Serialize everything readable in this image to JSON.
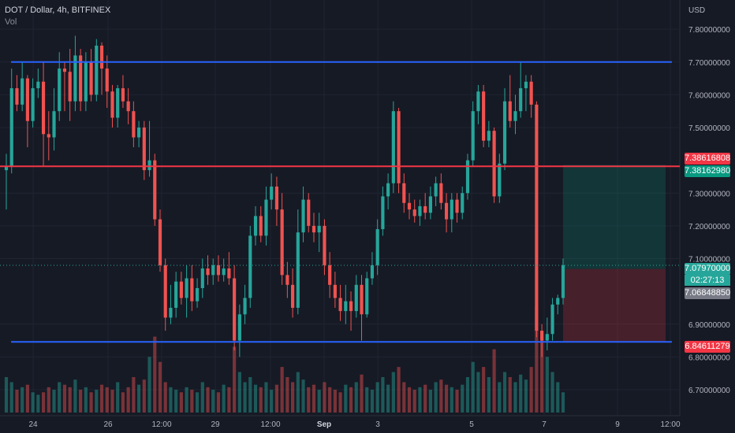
{
  "header": {
    "symbol": "DOT / Dollar, 4h, BITFINEX",
    "indicator": "Vol"
  },
  "colors": {
    "background": "#161a25",
    "up": "#26a69a",
    "down": "#ef5350",
    "support_resistance": "#2962ff",
    "level_line": "#f23645",
    "grid": "#202431",
    "axis_text": "#b2b5be"
  },
  "chart_data": {
    "type": "candlestick",
    "title": "DOT / Dollar, 4h, BITFINEX",
    "currency_label": "USD",
    "x_ticks": [
      "24",
      "26",
      "12:00",
      "29",
      "12:00",
      "Sep",
      "3",
      "5",
      "7",
      "9",
      "12:00"
    ],
    "y_ticks": [
      "7.80000000",
      "7.70000000",
      "7.60000000",
      "7.50000000",
      "7.30000000",
      "7.20000000",
      "7.10000000",
      "6.90000000",
      "6.80000000",
      "6.70000000"
    ],
    "ylim": [
      6.64,
      7.87
    ],
    "horizontal_lines": [
      {
        "price": 7.7,
        "color": "#2962ff"
      },
      {
        "price": 7.3816298,
        "color": "#f23645"
      },
      {
        "price": 6.84611279,
        "color": "#2962ff"
      }
    ],
    "position": {
      "entry": 7.0684885,
      "take_profit": 7.38616808,
      "stop_loss": 6.84611279
    },
    "price_labels": [
      {
        "text": "7.38616808",
        "kind": "sell"
      },
      {
        "text": "7.38162980",
        "kind": "buy"
      },
      {
        "text": "7.07970000",
        "kind": "buy"
      },
      {
        "text": "02:27:13",
        "kind": "countdown"
      },
      {
        "text": "7.06848850",
        "kind": "gray"
      },
      {
        "text": "6.84611279",
        "kind": "sell"
      }
    ],
    "candles": [
      [
        7.37,
        7.42,
        7.25,
        7.38
      ],
      [
        7.38,
        7.68,
        7.36,
        7.62
      ],
      [
        7.62,
        7.66,
        7.55,
        7.57
      ],
      [
        7.57,
        7.7,
        7.55,
        7.65
      ],
      [
        7.65,
        7.66,
        7.44,
        7.52
      ],
      [
        7.52,
        7.65,
        7.5,
        7.62
      ],
      [
        7.62,
        7.68,
        7.59,
        7.64
      ],
      [
        7.64,
        7.7,
        7.38,
        7.48
      ],
      [
        7.48,
        7.55,
        7.4,
        7.47
      ],
      [
        7.47,
        7.62,
        7.43,
        7.55
      ],
      [
        7.55,
        7.73,
        7.52,
        7.68
      ],
      [
        7.68,
        7.7,
        7.55,
        7.67
      ],
      [
        7.67,
        7.74,
        7.52,
        7.58
      ],
      [
        7.58,
        7.78,
        7.55,
        7.72
      ],
      [
        7.72,
        7.74,
        7.55,
        7.58
      ],
      [
        7.58,
        7.73,
        7.55,
        7.7
      ],
      [
        7.7,
        7.74,
        7.58,
        7.6
      ],
      [
        7.6,
        7.77,
        7.58,
        7.75
      ],
      [
        7.75,
        7.76,
        7.6,
        7.68
      ],
      [
        7.68,
        7.72,
        7.56,
        7.61
      ],
      [
        7.61,
        7.63,
        7.5,
        7.53
      ],
      [
        7.53,
        7.63,
        7.5,
        7.62
      ],
      [
        7.62,
        7.66,
        7.56,
        7.58
      ],
      [
        7.58,
        7.62,
        7.51,
        7.55
      ],
      [
        7.55,
        7.58,
        7.44,
        7.47
      ],
      [
        7.47,
        7.52,
        7.44,
        7.5
      ],
      [
        7.5,
        7.52,
        7.34,
        7.37
      ],
      [
        7.37,
        7.52,
        7.35,
        7.4
      ],
      [
        7.4,
        7.42,
        7.2,
        7.22
      ],
      [
        7.22,
        7.25,
        7.06,
        7.08
      ],
      [
        7.08,
        7.1,
        6.88,
        6.92
      ],
      [
        6.92,
        7.02,
        6.9,
        6.95
      ],
      [
        6.95,
        7.06,
        6.92,
        7.03
      ],
      [
        7.03,
        7.06,
        6.96,
        6.98
      ],
      [
        6.98,
        7.08,
        6.92,
        7.04
      ],
      [
        7.04,
        7.08,
        6.94,
        6.97
      ],
      [
        6.97,
        7.04,
        6.95,
        7.01
      ],
      [
        7.01,
        7.1,
        6.98,
        7.07
      ],
      [
        7.07,
        7.11,
        7.02,
        7.05
      ],
      [
        7.05,
        7.1,
        7.02,
        7.08
      ],
      [
        7.08,
        7.11,
        7.03,
        7.05
      ],
      [
        7.05,
        7.1,
        7.03,
        7.07
      ],
      [
        7.07,
        7.12,
        7.02,
        7.04
      ],
      [
        7.04,
        7.08,
        6.82,
        6.85
      ],
      [
        6.85,
        6.96,
        6.8,
        6.93
      ],
      [
        6.93,
        7.02,
        6.9,
        6.98
      ],
      [
        6.98,
        7.2,
        6.95,
        7.17
      ],
      [
        7.17,
        7.26,
        7.14,
        7.23
      ],
      [
        7.23,
        7.26,
        7.15,
        7.17
      ],
      [
        7.17,
        7.32,
        7.14,
        7.28
      ],
      [
        7.28,
        7.36,
        7.25,
        7.32
      ],
      [
        7.32,
        7.35,
        7.2,
        7.25
      ],
      [
        7.25,
        7.3,
        7.02,
        7.05
      ],
      [
        7.05,
        7.09,
        6.98,
        7.02
      ],
      [
        7.02,
        7.07,
        6.92,
        6.95
      ],
      [
        6.95,
        7.25,
        6.93,
        7.18
      ],
      [
        7.18,
        7.32,
        7.15,
        7.28
      ],
      [
        7.28,
        7.3,
        7.18,
        7.2
      ],
      [
        7.2,
        7.24,
        7.15,
        7.18
      ],
      [
        7.18,
        7.24,
        7.12,
        7.2
      ],
      [
        7.2,
        7.22,
        7.05,
        7.08
      ],
      [
        7.08,
        7.12,
        6.98,
        7.02
      ],
      [
        7.02,
        7.06,
        6.95,
        6.98
      ],
      [
        6.98,
        7.02,
        6.91,
        6.94
      ],
      [
        6.94,
        7.02,
        6.9,
        6.97
      ],
      [
        6.97,
        7.0,
        6.88,
        6.94
      ],
      [
        6.94,
        7.05,
        6.92,
        7.02
      ],
      [
        7.02,
        7.05,
        6.85,
        6.93
      ],
      [
        6.93,
        7.06,
        6.92,
        7.04
      ],
      [
        7.04,
        7.12,
        7.02,
        7.08
      ],
      [
        7.08,
        7.22,
        7.05,
        7.19
      ],
      [
        7.19,
        7.32,
        7.17,
        7.29
      ],
      [
        7.29,
        7.36,
        7.25,
        7.33
      ],
      [
        7.33,
        7.58,
        7.3,
        7.55
      ],
      [
        7.55,
        7.56,
        7.3,
        7.33
      ],
      [
        7.33,
        7.36,
        7.24,
        7.27
      ],
      [
        7.27,
        7.3,
        7.22,
        7.25
      ],
      [
        7.25,
        7.28,
        7.21,
        7.23
      ],
      [
        7.23,
        7.28,
        7.2,
        7.26
      ],
      [
        7.26,
        7.3,
        7.22,
        7.24
      ],
      [
        7.24,
        7.32,
        7.22,
        7.29
      ],
      [
        7.29,
        7.35,
        7.26,
        7.33
      ],
      [
        7.33,
        7.36,
        7.25,
        7.27
      ],
      [
        7.27,
        7.3,
        7.18,
        7.22
      ],
      [
        7.22,
        7.3,
        7.18,
        7.28
      ],
      [
        7.28,
        7.3,
        7.21,
        7.24
      ],
      [
        7.24,
        7.32,
        7.22,
        7.3
      ],
      [
        7.3,
        7.42,
        7.28,
        7.4
      ],
      [
        7.4,
        7.58,
        7.38,
        7.55
      ],
      [
        7.55,
        7.63,
        7.51,
        7.61
      ],
      [
        7.61,
        7.63,
        7.44,
        7.46
      ],
      [
        7.46,
        7.52,
        7.44,
        7.49
      ],
      [
        7.49,
        7.5,
        7.27,
        7.29
      ],
      [
        7.29,
        7.42,
        7.27,
        7.39
      ],
      [
        7.39,
        7.62,
        7.37,
        7.58
      ],
      [
        7.58,
        7.66,
        7.5,
        7.52
      ],
      [
        7.52,
        7.6,
        7.48,
        7.55
      ],
      [
        7.55,
        7.7,
        7.53,
        7.62
      ],
      [
        7.62,
        7.66,
        7.55,
        7.64
      ],
      [
        7.64,
        7.66,
        7.53,
        7.57
      ],
      [
        7.57,
        7.58,
        6.86,
        6.88
      ],
      [
        6.88,
        6.9,
        6.8,
        6.85
      ],
      [
        6.85,
        6.92,
        6.82,
        6.87
      ],
      [
        6.87,
        6.98,
        6.85,
        6.96
      ],
      [
        6.96,
        6.99,
        6.93,
        6.98
      ],
      [
        6.98,
        7.1,
        6.96,
        7.08
      ]
    ],
    "volume": [
      14,
      12,
      9,
      10,
      11,
      8,
      7,
      8,
      10,
      9,
      12,
      11,
      10,
      13,
      9,
      10,
      8,
      9,
      11,
      10,
      9,
      12,
      8,
      10,
      14,
      11,
      13,
      22,
      30,
      20,
      12,
      10,
      9,
      8,
      10,
      9,
      8,
      12,
      10,
      9,
      8,
      11,
      10,
      26,
      16,
      12,
      14,
      11,
      10,
      12,
      9,
      11,
      18,
      14,
      12,
      16,
      13,
      10,
      11,
      9,
      12,
      10,
      9,
      8,
      11,
      10,
      12,
      15,
      10,
      9,
      12,
      14,
      11,
      16,
      18,
      12,
      10,
      9,
      10,
      11,
      9,
      12,
      13,
      11,
      10,
      9,
      11,
      14,
      20,
      16,
      18,
      14,
      25,
      12,
      16,
      14,
      12,
      15,
      13,
      18,
      42,
      30,
      22,
      16,
      12,
      8
    ]
  }
}
